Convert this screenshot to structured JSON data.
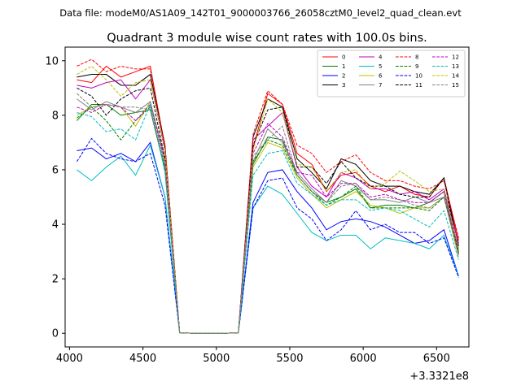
{
  "suptitle": "Data file: modeM0/AS1A09_142T01_9000003766_26058cztM0_level2_quad_clean.evt",
  "chart_data": {
    "type": "line",
    "title": "Quadrant 3 module wise count rates with 100.0s bins.",
    "xlabel": "",
    "ylabel": "",
    "x_offset_label": "+3.3321e8",
    "xlim": [
      3970,
      6720
    ],
    "ylim": [
      -0.5,
      10.5
    ],
    "xticks": [
      4000,
      4500,
      5000,
      5500,
      6000,
      6500
    ],
    "yticks": [
      0,
      2,
      4,
      6,
      8,
      10
    ],
    "grid": false,
    "legend": {
      "placement": "top-right",
      "columns": 4
    },
    "x": [
      4050,
      4150,
      4250,
      4350,
      4450,
      4550,
      4650,
      4750,
      4850,
      4950,
      5050,
      5150,
      5250,
      5350,
      5450,
      5550,
      5650,
      5750,
      5850,
      5950,
      6050,
      6150,
      6250,
      6350,
      6450,
      6550,
      6650
    ],
    "series": [
      {
        "name": "0",
        "color": "#ff0000",
        "dash": false,
        "values": [
          9.3,
          9.2,
          9.8,
          9.4,
          9.6,
          9.8,
          6.8,
          0.02,
          0,
          0,
          0,
          0.02,
          6.8,
          8.8,
          8.4,
          6.6,
          6.2,
          5.2,
          5.8,
          5.9,
          5.4,
          5.2,
          5.4,
          5.1,
          5.0,
          5.7,
          3.4
        ]
      },
      {
        "name": "1",
        "color": "#008000",
        "dash": false,
        "values": [
          7.8,
          8.4,
          8.4,
          8.0,
          8.1,
          8.2,
          6.0,
          0.02,
          0,
          0,
          0,
          0.02,
          6.2,
          7.2,
          7.1,
          5.8,
          5.2,
          4.8,
          5.0,
          5.3,
          4.6,
          4.7,
          4.7,
          4.6,
          4.8,
          5.2,
          3.0
        ]
      },
      {
        "name": "2",
        "color": "#0000ff",
        "dash": false,
        "values": [
          6.7,
          6.8,
          6.4,
          6.6,
          6.3,
          7.0,
          5.0,
          0.02,
          0,
          0,
          0,
          0.02,
          4.8,
          5.9,
          6.0,
          5.2,
          4.6,
          3.8,
          4.1,
          4.2,
          4.1,
          3.9,
          3.6,
          3.3,
          3.4,
          3.8,
          2.1
        ]
      },
      {
        "name": "3",
        "color": "#000000",
        "dash": false,
        "values": [
          9.4,
          9.5,
          9.5,
          9.1,
          9.1,
          9.5,
          6.9,
          0.02,
          0,
          0,
          0,
          0.02,
          7.2,
          8.6,
          8.3,
          6.4,
          5.9,
          5.3,
          6.4,
          6.2,
          5.6,
          5.4,
          5.4,
          5.2,
          5.1,
          5.7,
          3.2
        ]
      },
      {
        "name": "4",
        "color": "#c000c0",
        "dash": false,
        "values": [
          9.1,
          9.0,
          9.2,
          9.3,
          8.6,
          9.3,
          6.7,
          0.02,
          0,
          0,
          0,
          0.02,
          7.1,
          7.6,
          8.1,
          6.1,
          5.4,
          5.0,
          5.9,
          5.7,
          5.3,
          5.3,
          5.1,
          5.2,
          4.9,
          5.3,
          3.3
        ]
      },
      {
        "name": "5",
        "color": "#00bfbf",
        "dash": false,
        "values": [
          6.0,
          5.6,
          6.1,
          6.5,
          5.8,
          6.9,
          5.0,
          0.02,
          0,
          0,
          0,
          0.02,
          4.6,
          5.4,
          5.1,
          4.4,
          3.7,
          3.4,
          3.6,
          3.6,
          3.1,
          3.5,
          3.4,
          3.3,
          3.1,
          3.6,
          2.1
        ]
      },
      {
        "name": "6",
        "color": "#bfbf00",
        "dash": false,
        "values": [
          8.0,
          8.3,
          8.4,
          8.3,
          7.6,
          8.5,
          6.4,
          0.02,
          0,
          0,
          0,
          0.02,
          6.1,
          7.0,
          6.8,
          5.7,
          5.1,
          4.6,
          4.9,
          5.2,
          4.7,
          4.6,
          4.4,
          4.6,
          4.6,
          5.0,
          2.8
        ]
      },
      {
        "name": "7",
        "color": "#808080",
        "dash": false,
        "values": [
          8.6,
          8.2,
          8.5,
          8.3,
          8.1,
          8.5,
          6.4,
          0.02,
          0,
          0,
          0,
          0.02,
          6.3,
          7.5,
          7.0,
          5.9,
          5.3,
          4.8,
          5.6,
          5.4,
          4.9,
          4.9,
          4.8,
          5.0,
          4.8,
          5.0,
          3.1
        ]
      },
      {
        "name": "8",
        "color": "#ff0000",
        "dash": true,
        "values": [
          9.8,
          10.05,
          9.6,
          9.8,
          9.7,
          9.7,
          6.9,
          0.02,
          0,
          0,
          0,
          0.02,
          7.3,
          8.9,
          8.4,
          6.9,
          6.6,
          5.9,
          6.3,
          6.55,
          5.9,
          5.6,
          5.6,
          5.4,
          5.3,
          5.6,
          3.5
        ]
      },
      {
        "name": "9",
        "color": "#008000",
        "dash": true,
        "values": [
          7.9,
          8.3,
          7.8,
          7.1,
          7.8,
          8.3,
          6.1,
          0.02,
          0,
          0,
          0,
          0.02,
          6.3,
          7.1,
          6.9,
          5.8,
          5.2,
          4.7,
          5.0,
          5.4,
          4.6,
          4.6,
          4.6,
          4.6,
          4.5,
          5.0,
          2.9
        ]
      },
      {
        "name": "10",
        "color": "#0000ff",
        "dash": true,
        "values": [
          6.3,
          7.15,
          6.6,
          6.4,
          6.3,
          6.6,
          4.7,
          0.02,
          0,
          0,
          0,
          0.02,
          4.6,
          5.6,
          5.7,
          4.6,
          4.2,
          3.4,
          3.8,
          4.5,
          3.8,
          4.0,
          3.7,
          3.7,
          3.3,
          3.5,
          2.05
        ]
      },
      {
        "name": "11",
        "color": "#000000",
        "dash": true,
        "values": [
          9.0,
          8.7,
          8.0,
          8.6,
          8.9,
          9.0,
          6.4,
          0.02,
          0,
          0,
          0,
          0.02,
          6.9,
          8.2,
          8.3,
          6.1,
          6.1,
          5.5,
          6.3,
          5.7,
          5.4,
          5.4,
          5.1,
          5.0,
          5.0,
          5.7,
          2.9
        ]
      },
      {
        "name": "12",
        "color": "#c000c0",
        "dash": true,
        "values": [
          8.3,
          8.1,
          8.4,
          8.3,
          7.8,
          8.4,
          6.3,
          0.02,
          0,
          0,
          0,
          0.02,
          6.6,
          7.7,
          7.2,
          5.9,
          5.8,
          5.0,
          5.5,
          5.5,
          5.0,
          5.1,
          4.9,
          4.8,
          4.8,
          5.2,
          2.9
        ]
      },
      {
        "name": "13",
        "color": "#00bfbf",
        "dash": true,
        "values": [
          8.1,
          7.95,
          7.4,
          7.5,
          7.1,
          8.4,
          5.9,
          0.02,
          0,
          0,
          0,
          0.02,
          5.8,
          6.6,
          6.7,
          5.5,
          5.1,
          4.7,
          4.9,
          4.9,
          4.5,
          4.6,
          4.5,
          4.2,
          3.9,
          4.5,
          2.7
        ]
      },
      {
        "name": "14",
        "color": "#bfbf00",
        "dash": true,
        "values": [
          9.5,
          9.8,
          9.3,
          8.7,
          9.2,
          9.3,
          6.7,
          0.02,
          0,
          0,
          0,
          0.02,
          6.7,
          8.6,
          8.1,
          6.2,
          6.1,
          5.2,
          5.9,
          6.0,
          5.3,
          5.5,
          5.95,
          5.6,
          5.2,
          5.3,
          3.1
        ]
      },
      {
        "name": "15",
        "color": "#808080",
        "dash": true,
        "values": [
          8.8,
          8.3,
          8.4,
          8.3,
          8.3,
          8.2,
          6.2,
          0.02,
          0,
          0,
          0,
          0.02,
          6.5,
          7.1,
          7.6,
          5.8,
          5.2,
          4.8,
          5.4,
          5.5,
          4.9,
          5.0,
          4.9,
          4.7,
          4.6,
          5.0,
          2.9
        ]
      }
    ]
  }
}
